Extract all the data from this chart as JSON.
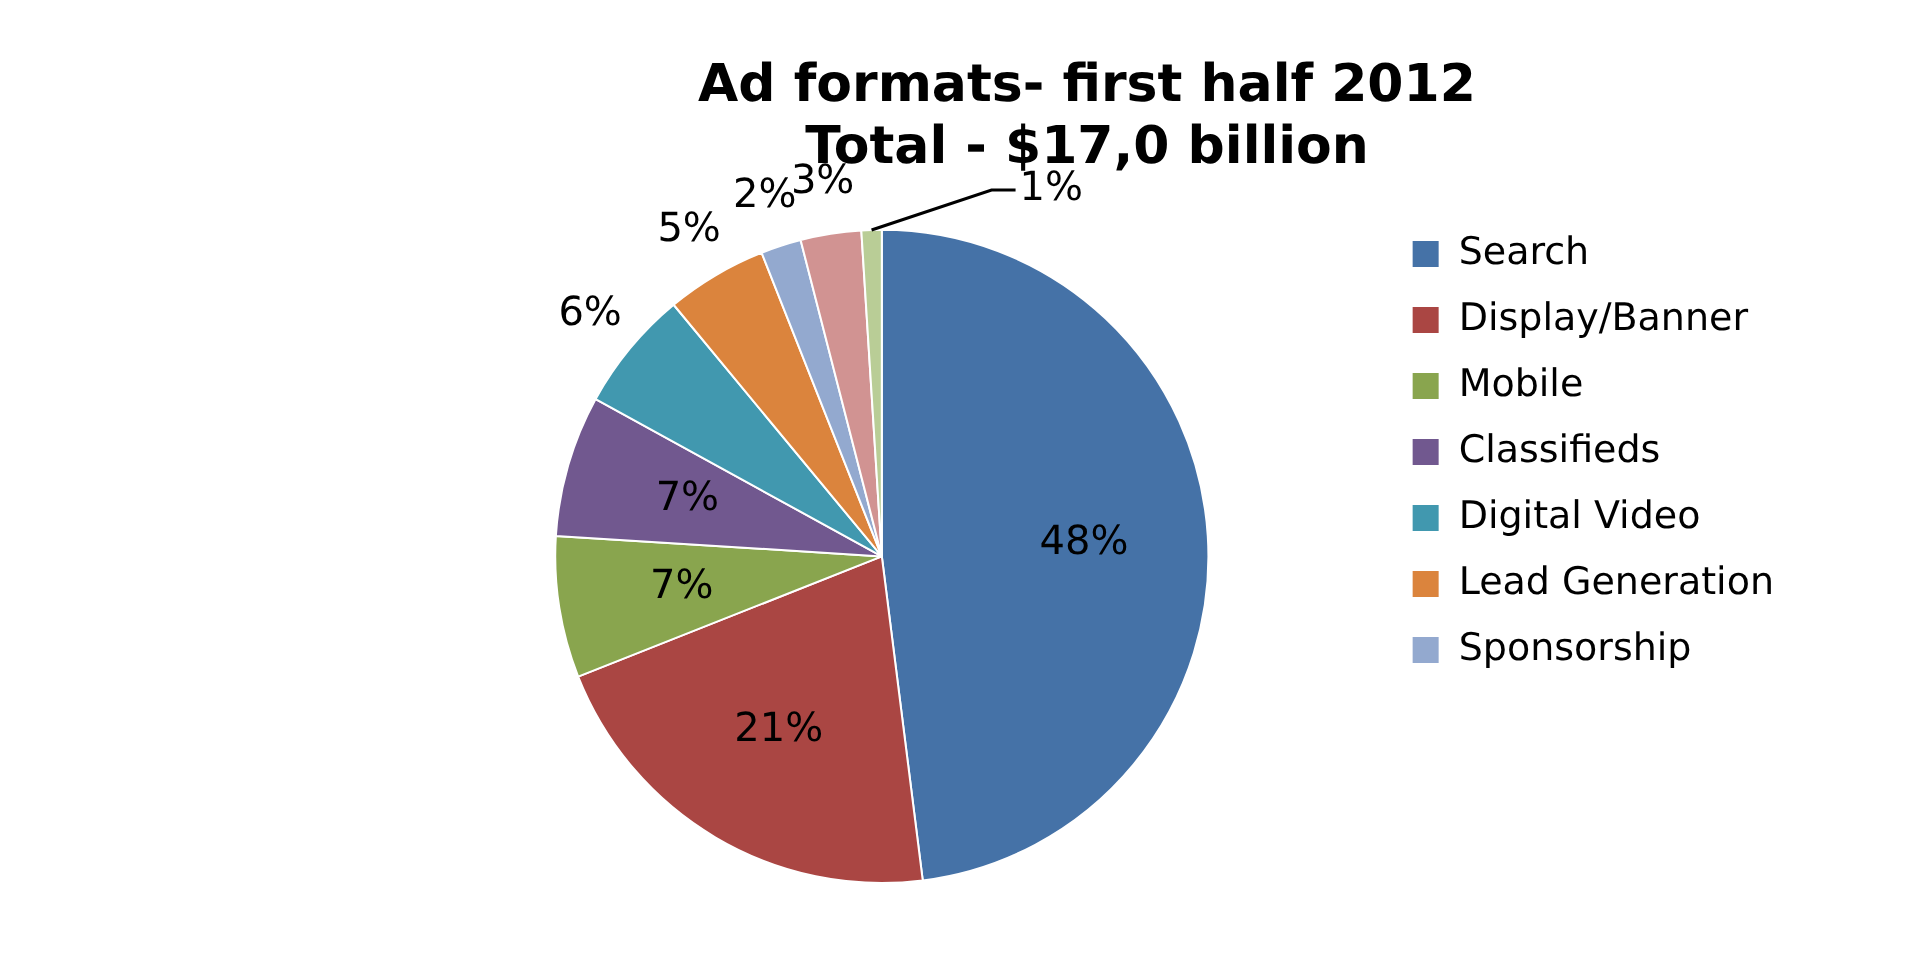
{
  "chart_data": {
    "type": "pie",
    "title": [
      "Ad formats- first half 2012",
      "Total - $17,0 billion"
    ],
    "categories": [
      "Search",
      "Display/Banner",
      "Mobile",
      "Classifieds",
      "Digital Video",
      "Lead Generation",
      "Sponsorship",
      null,
      null
    ],
    "values": [
      48,
      21,
      7,
      7,
      6,
      5,
      2,
      3,
      1
    ],
    "colors": [
      "#4572a7",
      "#aa4643",
      "#89a54e",
      "#71588f",
      "#4198af",
      "#db843d",
      "#93a9cf",
      "#d19392",
      "#b9cd96"
    ],
    "value_labels": [
      "48%",
      "21%",
      "7%",
      "7%",
      "6%",
      "5%",
      "2%",
      "3%",
      "1%"
    ],
    "legend": "right"
  }
}
